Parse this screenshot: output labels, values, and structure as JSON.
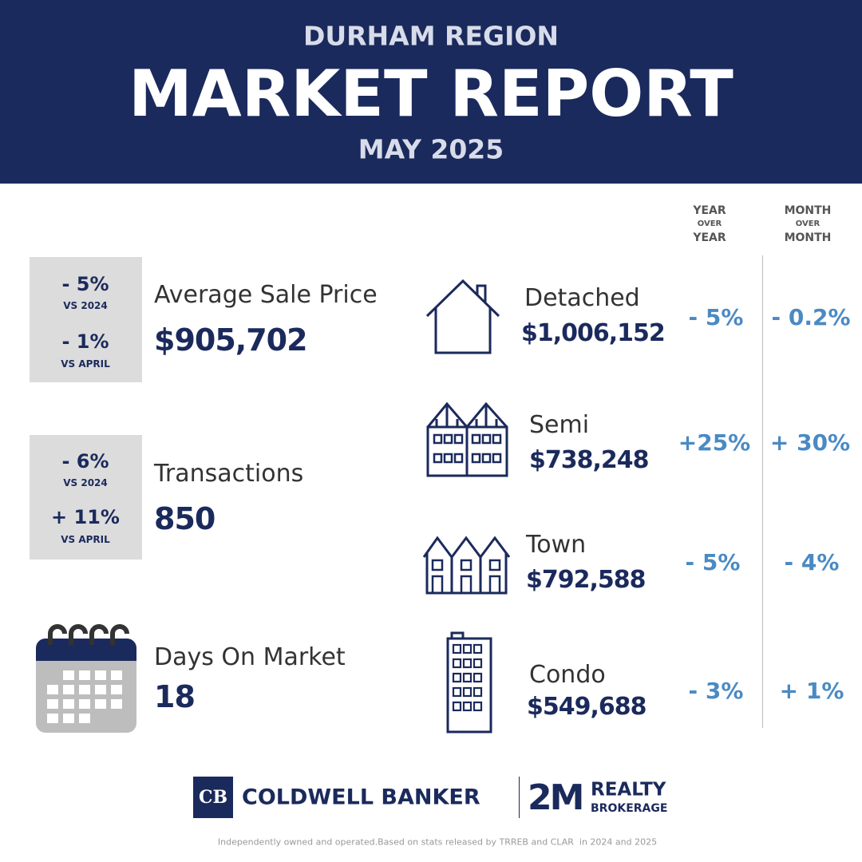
{
  "header": {
    "region": "DURHAM REGION",
    "title": "MARKET REPORT",
    "period": "MAY 2025"
  },
  "column_headers": {
    "yoy": [
      "YEAR",
      "OVER",
      "YEAR"
    ],
    "mom": [
      "MONTH",
      "OVER",
      "MONTH"
    ]
  },
  "summary": [
    {
      "label": "Average Sale Price",
      "value": "$905,702",
      "changes": [
        {
          "change": "- 5%",
          "vs": "VS 2024"
        },
        {
          "change": "- 1%",
          "vs": "VS APRIL"
        }
      ]
    },
    {
      "label": "Transactions",
      "value": "850",
      "changes": [
        {
          "change": "- 6%",
          "vs": "VS 2024"
        },
        {
          "change": "+ 11%",
          "vs": "VS APRIL"
        }
      ]
    },
    {
      "label": "Days On Market",
      "value": "18"
    }
  ],
  "property_types": [
    {
      "name": "Detached",
      "price": "$1,006,152",
      "yoy": "- 5%",
      "mom": "- 0.2%"
    },
    {
      "name": "Semi",
      "price": "$738,248",
      "yoy": "+25%",
      "mom": "+ 30%"
    },
    {
      "name": "Town",
      "price": "$792,588",
      "yoy": "- 5%",
      "mom": "- 4%"
    },
    {
      "name": "Condo",
      "price": "$549,688",
      "yoy": "- 3%",
      "mom": "+ 1%"
    }
  ],
  "logo": {
    "mark": "CB",
    "brand": "COLDWELL BANKER",
    "partner": "2M",
    "partner_line1": "REALTY",
    "partner_line2": "BROKERAGE"
  },
  "footer": "Independently owned and operated.Based on stats released by TRREB and CLAR  in 2024 and 2025"
}
